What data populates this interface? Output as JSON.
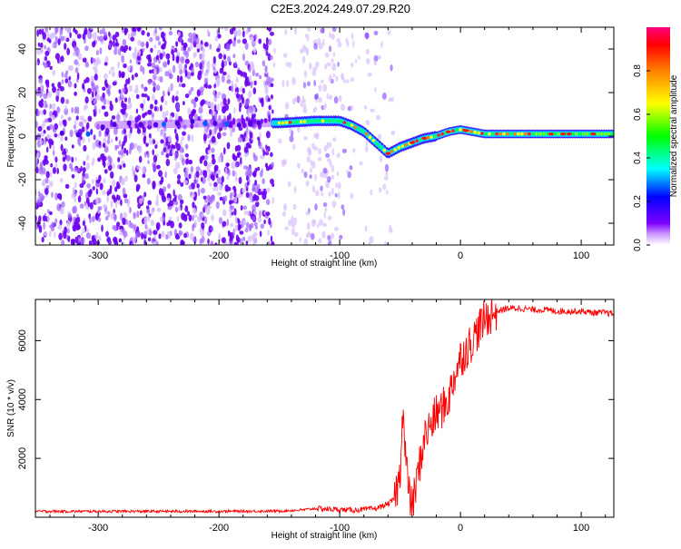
{
  "title": "C2E3.2024.249.07.29.R20",
  "chart_data": [
    {
      "type": "heatmap",
      "xlabel": "Height of straight line (km)",
      "ylabel": "Frequency (Hz)",
      "xlim": [
        -352,
        127
      ],
      "ylim": [
        -50,
        50
      ],
      "xticks": [
        -300,
        -200,
        -100,
        0,
        100
      ],
      "yticks": [
        -40,
        -20,
        0,
        20,
        40
      ],
      "colorbar": {
        "label": "Normalized spectral amplitude",
        "range": [
          0,
          1
        ],
        "ticks": [
          "0.0",
          "0.2",
          "0.4",
          "0.6",
          "0.8"
        ],
        "colors": [
          "#ffffff",
          "#cc99ff",
          "#7f00ff",
          "#0000ff",
          "#00ffff",
          "#00ff00",
          "#ffff00",
          "#ff8000",
          "#ff0000",
          "#ff0080"
        ]
      },
      "ridge": {
        "x": [
          -300,
          -200,
          -150,
          -120,
          -100,
          -90,
          -80,
          -70,
          -60,
          -50,
          -40,
          -30,
          -20,
          -10,
          0,
          20,
          50,
          80,
          100,
          127
        ],
        "y": [
          5,
          6,
          6,
          7,
          7,
          5,
          2,
          -3,
          -8,
          -5,
          -3,
          -1,
          0,
          2,
          3,
          1,
          1,
          1,
          1,
          1
        ]
      },
      "noise_region_x": [
        -352,
        -55
      ],
      "grid": false
    },
    {
      "type": "line",
      "xlabel": "Height of straight line (km)",
      "ylabel": "SNR (10 * v/v)",
      "xlim": [
        -352,
        127
      ],
      "ylim": [
        0,
        7400
      ],
      "xticks": [
        -300,
        -200,
        -100,
        0,
        100
      ],
      "yticks": [
        2000,
        4000,
        6000
      ],
      "color": "#ff0000",
      "series": [
        {
          "x": [
            -352,
            -300,
            -250,
            -200,
            -150,
            -130,
            -120,
            -110,
            -100,
            -90,
            -80,
            -70,
            -60,
            -55,
            -50,
            -48,
            -45,
            -42,
            -40,
            -35,
            -30,
            -25,
            -20,
            -15,
            -10,
            -5,
            0,
            5,
            10,
            15,
            20,
            25,
            30,
            35,
            40,
            50,
            60,
            70,
            80,
            90,
            100,
            110,
            120,
            127
          ],
          "y": [
            200,
            200,
            200,
            200,
            210,
            250,
            300,
            280,
            260,
            240,
            260,
            300,
            450,
            600,
            1400,
            3800,
            1800,
            600,
            300,
            1500,
            2700,
            3100,
            3500,
            3700,
            4000,
            4800,
            5400,
            5700,
            6000,
            6400,
            6700,
            6900,
            7000,
            7050,
            7100,
            7100,
            7050,
            7050,
            7000,
            7000,
            7000,
            6950,
            6950,
            6900
          ]
        }
      ],
      "grid": false
    }
  ]
}
